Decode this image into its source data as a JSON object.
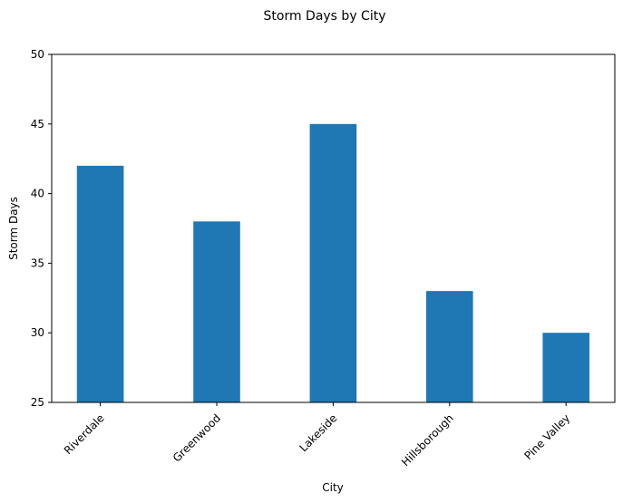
{
  "chart_data": {
    "type": "bar",
    "title": "Storm Days by City",
    "xlabel": "City",
    "ylabel": "Storm Days",
    "categories": [
      "Riverdale",
      "Greenwood",
      "Lakeside",
      "Hillsborough",
      "Pine Valley"
    ],
    "values": [
      42,
      38,
      45,
      33,
      30
    ],
    "ylim": [
      25,
      50
    ],
    "yticks": [
      "25",
      "30",
      "35",
      "40",
      "45",
      "50"
    ],
    "grid": false,
    "legend": "none",
    "bar_color": "#1f77b4"
  }
}
